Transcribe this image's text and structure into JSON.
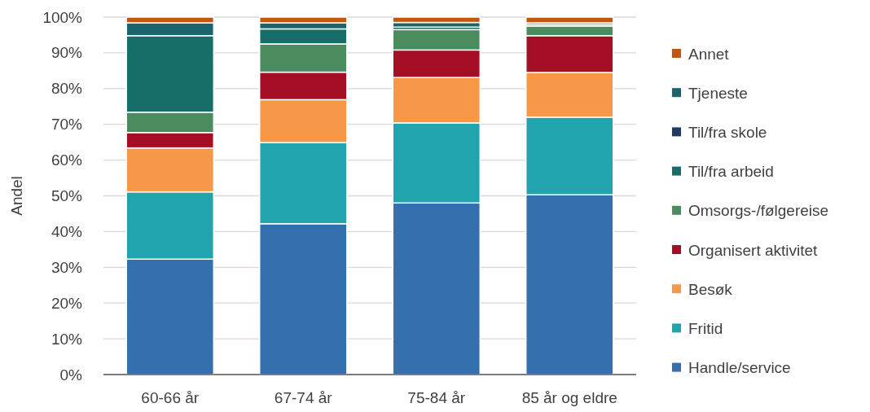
{
  "chart_data": {
    "type": "bar",
    "stacked": true,
    "ylabel": "Andel",
    "categories": [
      "60-66 år",
      "67-74 år",
      "75-84 år",
      "85 år og eldre"
    ],
    "series": [
      {
        "name": "Handle/service",
        "color": "#3570ae",
        "values": [
          32.3,
          42.2,
          48.0,
          50.3
        ]
      },
      {
        "name": "Fritid",
        "color": "#22a4ae",
        "values": [
          18.8,
          22.7,
          22.4,
          21.7
        ]
      },
      {
        "name": "Besøk",
        "color": "#f79848",
        "values": [
          12.3,
          12.0,
          12.7,
          12.5
        ]
      },
      {
        "name": "Organisert aktivitet",
        "color": "#a50f25",
        "values": [
          4.3,
          7.7,
          7.7,
          10.3
        ]
      },
      {
        "name": "Omsorgs-/følgereise",
        "color": "#4a8c5e",
        "values": [
          5.7,
          7.9,
          5.7,
          2.7
        ]
      },
      {
        "name": "Til/fra arbeid",
        "color": "#176e68",
        "values": [
          21.4,
          4.2,
          0.7,
          0.4
        ]
      },
      {
        "name": "Til/fra skole",
        "color": "#1f3a64",
        "values": [
          null,
          null,
          null,
          null
        ]
      },
      {
        "name": "Tjeneste",
        "color": "#1a6470",
        "values": [
          3.6,
          1.7,
          1.3,
          0.5
        ]
      },
      {
        "name": "Annet",
        "color": "#c0560f",
        "values": [
          1.6,
          1.6,
          1.5,
          1.6
        ]
      }
    ],
    "ylim": [
      0,
      100
    ],
    "yticks": [
      {
        "value": 0,
        "label": "0%"
      },
      {
        "value": 10,
        "label": "10%"
      },
      {
        "value": 20,
        "label": "20%"
      },
      {
        "value": 30,
        "label": "30%"
      },
      {
        "value": 40,
        "label": "40%"
      },
      {
        "value": 50,
        "label": "50%"
      },
      {
        "value": 60,
        "label": "60%"
      },
      {
        "value": 70,
        "label": "70%"
      },
      {
        "value": 80,
        "label": "80%"
      },
      {
        "value": 90,
        "label": "90%"
      },
      {
        "value": 100,
        "label": "100%"
      }
    ],
    "grid": "y",
    "legend": "right"
  }
}
